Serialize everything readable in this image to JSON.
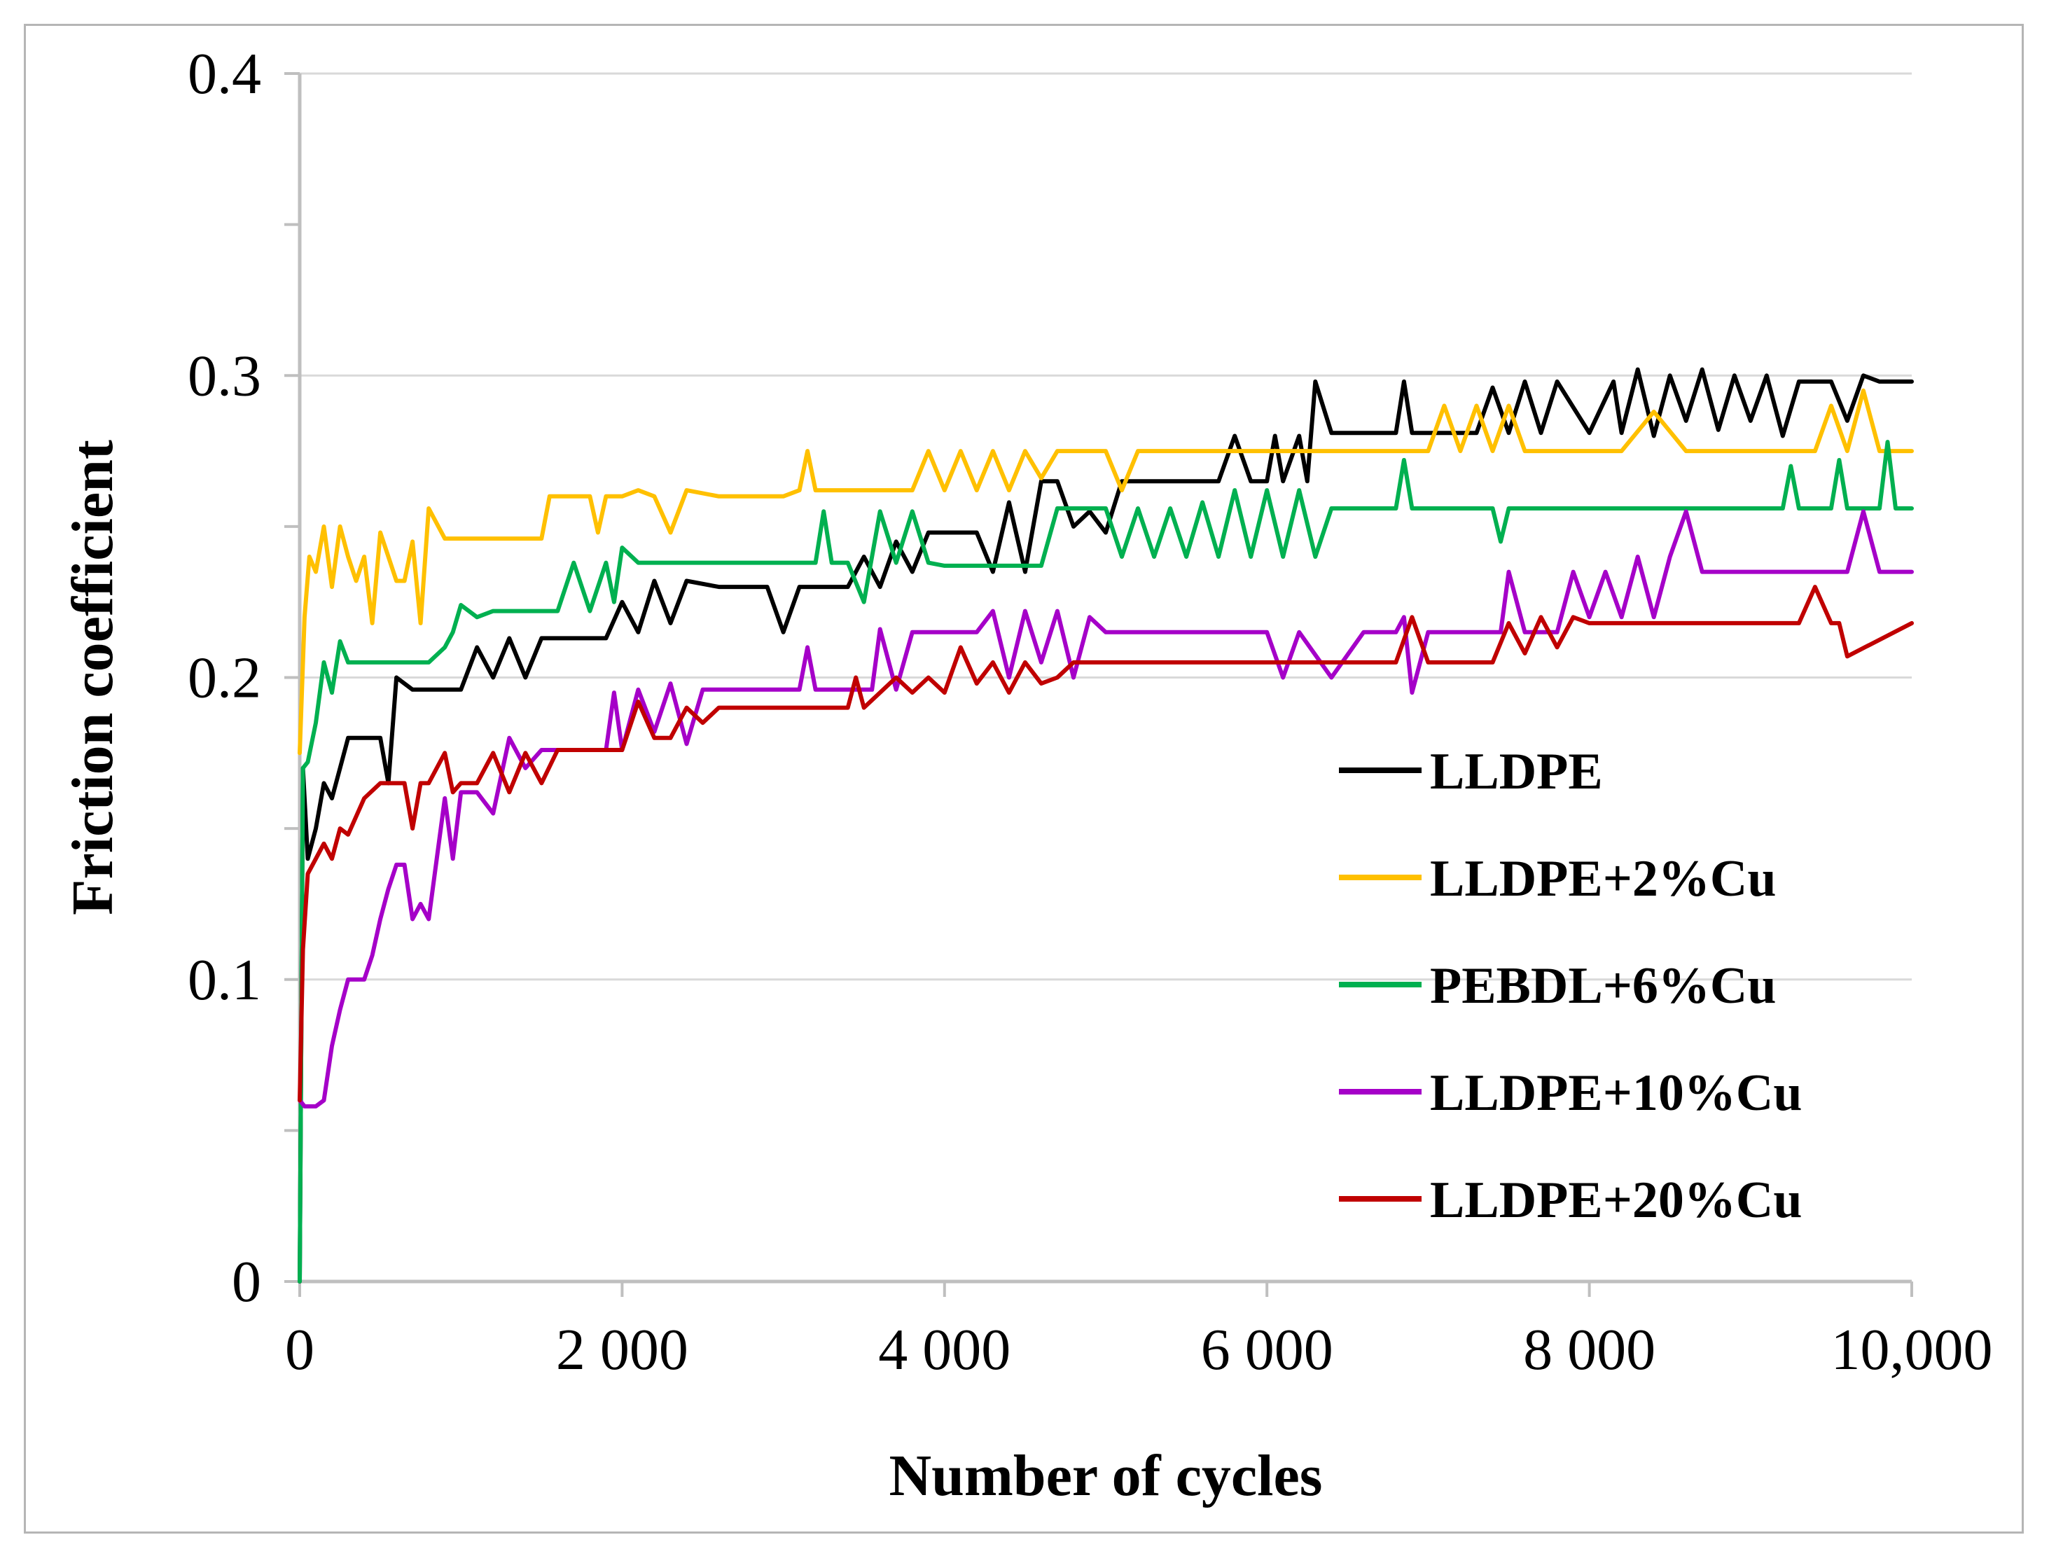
{
  "chart_data": {
    "type": "line",
    "title": "",
    "xlabel": "Number of cycles",
    "ylabel": "Friction coefficient",
    "xlim": [
      0,
      10000
    ],
    "ylim": [
      0,
      0.4
    ],
    "grid": true,
    "legend_position": "center-right",
    "x_ticks": [
      {
        "value": 0,
        "label": "0"
      },
      {
        "value": 2000,
        "label": "2 000"
      },
      {
        "value": 4000,
        "label": "4 000"
      },
      {
        "value": 6000,
        "label": "6 000"
      },
      {
        "value": 8000,
        "label": "8 000"
      },
      {
        "value": 10000,
        "label": "10,000"
      }
    ],
    "y_ticks": [
      {
        "value": 0,
        "label": "0"
      },
      {
        "value": 0.1,
        "label": "0.1"
      },
      {
        "value": 0.2,
        "label": "0.2"
      },
      {
        "value": 0.3,
        "label": "0.3"
      },
      {
        "value": 0.4,
        "label": "0.4"
      }
    ],
    "series": [
      {
        "name": "LLDPE",
        "color": "#000000",
        "x": [
          0,
          20,
          50,
          100,
          150,
          200,
          250,
          300,
          400,
          500,
          550,
          600,
          700,
          800,
          900,
          1000,
          1100,
          1200,
          1300,
          1400,
          1500,
          1600,
          1800,
          1900,
          2000,
          2100,
          2200,
          2300,
          2400,
          2600,
          2900,
          3000,
          3100,
          3400,
          3500,
          3600,
          3700,
          3800,
          3900,
          4000,
          4200,
          4300,
          4400,
          4500,
          4600,
          4700,
          4800,
          4900,
          5000,
          5100,
          5300,
          5500,
          5700,
          5800,
          5900,
          6000,
          6050,
          6100,
          6200,
          6250,
          6300,
          6400,
          6600,
          6800,
          6850,
          6900,
          7000,
          7300,
          7400,
          7500,
          7600,
          7700,
          7800,
          8000,
          8150,
          8200,
          8300,
          8400,
          8500,
          8600,
          8700,
          8800,
          8900,
          9000,
          9100,
          9200,
          9300,
          9400,
          9500,
          9600,
          9700,
          9800,
          9900,
          10000
        ],
        "y": [
          0.0,
          0.17,
          0.14,
          0.15,
          0.165,
          0.16,
          0.17,
          0.18,
          0.18,
          0.18,
          0.165,
          0.2,
          0.196,
          0.196,
          0.196,
          0.196,
          0.21,
          0.2,
          0.213,
          0.2,
          0.213,
          0.213,
          0.213,
          0.213,
          0.225,
          0.215,
          0.232,
          0.218,
          0.232,
          0.23,
          0.23,
          0.215,
          0.23,
          0.23,
          0.24,
          0.23,
          0.245,
          0.235,
          0.248,
          0.248,
          0.248,
          0.235,
          0.258,
          0.235,
          0.265,
          0.265,
          0.25,
          0.255,
          0.248,
          0.265,
          0.265,
          0.265,
          0.265,
          0.28,
          0.265,
          0.265,
          0.28,
          0.265,
          0.28,
          0.265,
          0.298,
          0.281,
          0.281,
          0.281,
          0.298,
          0.281,
          0.281,
          0.281,
          0.296,
          0.281,
          0.298,
          0.281,
          0.298,
          0.281,
          0.298,
          0.281,
          0.302,
          0.28,
          0.3,
          0.285,
          0.302,
          0.282,
          0.3,
          0.285,
          0.3,
          0.28,
          0.298,
          0.298,
          0.298,
          0.285,
          0.3,
          0.298,
          0.298,
          0.298
        ]
      },
      {
        "name": "LLDPE+2%Cu",
        "color": "#FFC000",
        "x": [
          0,
          30,
          60,
          100,
          150,
          200,
          250,
          300,
          350,
          400,
          450,
          500,
          600,
          650,
          700,
          750,
          800,
          900,
          1000,
          1200,
          1400,
          1500,
          1550,
          1600,
          1800,
          1850,
          1900,
          2000,
          2100,
          2200,
          2300,
          2400,
          2600,
          3000,
          3100,
          3150,
          3200,
          3300,
          3500,
          3600,
          3800,
          3900,
          4000,
          4100,
          4200,
          4300,
          4400,
          4500,
          4600,
          4700,
          4800,
          5000,
          5100,
          5200,
          5400,
          5500,
          6000,
          6500,
          7000,
          7100,
          7200,
          7300,
          7400,
          7500,
          7600,
          7800,
          8000,
          8200,
          8400,
          8600,
          9000,
          9400,
          9500,
          9600,
          9700,
          9800,
          10000
        ],
        "y": [
          0.175,
          0.22,
          0.24,
          0.235,
          0.25,
          0.23,
          0.25,
          0.24,
          0.232,
          0.24,
          0.218,
          0.248,
          0.232,
          0.232,
          0.245,
          0.218,
          0.256,
          0.246,
          0.246,
          0.246,
          0.246,
          0.246,
          0.26,
          0.26,
          0.26,
          0.248,
          0.26,
          0.26,
          0.262,
          0.26,
          0.248,
          0.262,
          0.26,
          0.26,
          0.262,
          0.275,
          0.262,
          0.262,
          0.262,
          0.262,
          0.262,
          0.275,
          0.262,
          0.275,
          0.262,
          0.275,
          0.262,
          0.275,
          0.266,
          0.275,
          0.275,
          0.275,
          0.262,
          0.275,
          0.275,
          0.275,
          0.275,
          0.275,
          0.275,
          0.29,
          0.275,
          0.29,
          0.275,
          0.29,
          0.275,
          0.275,
          0.275,
          0.275,
          0.288,
          0.275,
          0.275,
          0.275,
          0.29,
          0.275,
          0.295,
          0.275,
          0.275
        ]
      },
      {
        "name": "PEBDL+6%Cu",
        "color": "#00B050",
        "x": [
          0,
          20,
          50,
          100,
          150,
          200,
          250,
          300,
          400,
          500,
          600,
          700,
          800,
          900,
          950,
          1000,
          1100,
          1200,
          1300,
          1400,
          1600,
          1700,
          1800,
          1900,
          1950,
          2000,
          2100,
          2200,
          2400,
          2800,
          3200,
          3250,
          3300,
          3400,
          3500,
          3600,
          3700,
          3800,
          3900,
          4000,
          4200,
          4400,
          4600,
          4700,
          4800,
          5000,
          5100,
          5200,
          5300,
          5400,
          5500,
          5600,
          5700,
          5800,
          5900,
          6000,
          6100,
          6200,
          6300,
          6400,
          6500,
          6600,
          6800,
          6850,
          6900,
          7000,
          7400,
          7450,
          7500,
          7600,
          8000,
          8500,
          9000,
          9200,
          9250,
          9300,
          9500,
          9550,
          9600,
          9800,
          9850,
          9900,
          10000
        ],
        "y": [
          0.0,
          0.17,
          0.172,
          0.185,
          0.205,
          0.195,
          0.212,
          0.205,
          0.205,
          0.205,
          0.205,
          0.205,
          0.205,
          0.21,
          0.215,
          0.224,
          0.22,
          0.222,
          0.222,
          0.222,
          0.222,
          0.238,
          0.222,
          0.238,
          0.225,
          0.243,
          0.238,
          0.238,
          0.238,
          0.238,
          0.238,
          0.255,
          0.238,
          0.238,
          0.225,
          0.255,
          0.238,
          0.255,
          0.238,
          0.237,
          0.237,
          0.237,
          0.237,
          0.256,
          0.256,
          0.256,
          0.24,
          0.256,
          0.24,
          0.256,
          0.24,
          0.258,
          0.24,
          0.262,
          0.24,
          0.262,
          0.24,
          0.262,
          0.24,
          0.256,
          0.256,
          0.256,
          0.256,
          0.272,
          0.256,
          0.256,
          0.256,
          0.245,
          0.256,
          0.256,
          0.256,
          0.256,
          0.256,
          0.256,
          0.27,
          0.256,
          0.256,
          0.272,
          0.256,
          0.256,
          0.278,
          0.256,
          0.256
        ]
      },
      {
        "name": "LLDPE+10%Cu",
        "color": "#A500C8",
        "x": [
          0,
          30,
          60,
          100,
          150,
          200,
          250,
          300,
          350,
          400,
          450,
          500,
          550,
          600,
          650,
          700,
          750,
          800,
          850,
          900,
          950,
          1000,
          1100,
          1200,
          1300,
          1400,
          1500,
          1600,
          1800,
          1900,
          1950,
          2000,
          2100,
          2200,
          2300,
          2400,
          2500,
          2600,
          3000,
          3100,
          3150,
          3200,
          3300,
          3400,
          3500,
          3550,
          3600,
          3700,
          3800,
          4000,
          4200,
          4300,
          4400,
          4500,
          4600,
          4700,
          4800,
          4900,
          5000,
          5100,
          5200,
          5300,
          5500,
          5800,
          5900,
          6000,
          6100,
          6200,
          6400,
          6600,
          6800,
          6850,
          6900,
          7000,
          7300,
          7450,
          7500,
          7600,
          7800,
          7900,
          8000,
          8100,
          8200,
          8300,
          8400,
          8500,
          8600,
          8700,
          8800,
          8900,
          9000,
          9200,
          9400,
          9600,
          9700,
          9800,
          10000
        ],
        "y": [
          0.06,
          0.058,
          0.058,
          0.058,
          0.06,
          0.078,
          0.09,
          0.1,
          0.1,
          0.1,
          0.108,
          0.12,
          0.13,
          0.138,
          0.138,
          0.12,
          0.125,
          0.12,
          0.14,
          0.16,
          0.14,
          0.162,
          0.162,
          0.155,
          0.18,
          0.17,
          0.176,
          0.176,
          0.176,
          0.176,
          0.195,
          0.176,
          0.196,
          0.182,
          0.198,
          0.178,
          0.196,
          0.196,
          0.196,
          0.196,
          0.21,
          0.196,
          0.196,
          0.196,
          0.196,
          0.196,
          0.216,
          0.196,
          0.215,
          0.215,
          0.215,
          0.222,
          0.2,
          0.222,
          0.205,
          0.222,
          0.2,
          0.22,
          0.215,
          0.215,
          0.215,
          0.215,
          0.215,
          0.215,
          0.215,
          0.215,
          0.2,
          0.215,
          0.2,
          0.215,
          0.215,
          0.22,
          0.195,
          0.215,
          0.215,
          0.215,
          0.235,
          0.215,
          0.215,
          0.235,
          0.22,
          0.235,
          0.22,
          0.24,
          0.22,
          0.24,
          0.255,
          0.235,
          0.235,
          0.235,
          0.235,
          0.235,
          0.235,
          0.235,
          0.255,
          0.235,
          0.235
        ]
      },
      {
        "name": "LLDPE+20%Cu",
        "color": "#C00000",
        "x": [
          0,
          20,
          50,
          100,
          150,
          200,
          250,
          300,
          400,
          500,
          600,
          650,
          700,
          750,
          800,
          900,
          950,
          1000,
          1100,
          1200,
          1300,
          1400,
          1500,
          1600,
          1800,
          2000,
          2100,
          2200,
          2300,
          2400,
          2500,
          2600,
          3000,
          3400,
          3450,
          3500,
          3600,
          3700,
          3800,
          3900,
          4000,
          4100,
          4200,
          4300,
          4400,
          4500,
          4600,
          4700,
          4800,
          5000,
          5200,
          5400,
          6000,
          6500,
          6800,
          6900,
          7000,
          7200,
          7400,
          7500,
          7600,
          7700,
          7800,
          7900,
          8000,
          8500,
          9000,
          9300,
          9400,
          9500,
          9550,
          9600,
          10000
        ],
        "y": [
          0.06,
          0.11,
          0.135,
          0.14,
          0.145,
          0.14,
          0.15,
          0.148,
          0.16,
          0.165,
          0.165,
          0.165,
          0.15,
          0.165,
          0.165,
          0.175,
          0.162,
          0.165,
          0.165,
          0.175,
          0.162,
          0.175,
          0.165,
          0.176,
          0.176,
          0.176,
          0.192,
          0.18,
          0.18,
          0.19,
          0.185,
          0.19,
          0.19,
          0.19,
          0.2,
          0.19,
          0.195,
          0.2,
          0.195,
          0.2,
          0.195,
          0.21,
          0.198,
          0.205,
          0.195,
          0.205,
          0.198,
          0.2,
          0.205,
          0.205,
          0.205,
          0.205,
          0.205,
          0.205,
          0.205,
          0.22,
          0.205,
          0.205,
          0.205,
          0.218,
          0.208,
          0.22,
          0.21,
          0.22,
          0.218,
          0.218,
          0.218,
          0.218,
          0.23,
          0.218,
          0.218,
          0.207,
          0.218
        ]
      }
    ]
  }
}
